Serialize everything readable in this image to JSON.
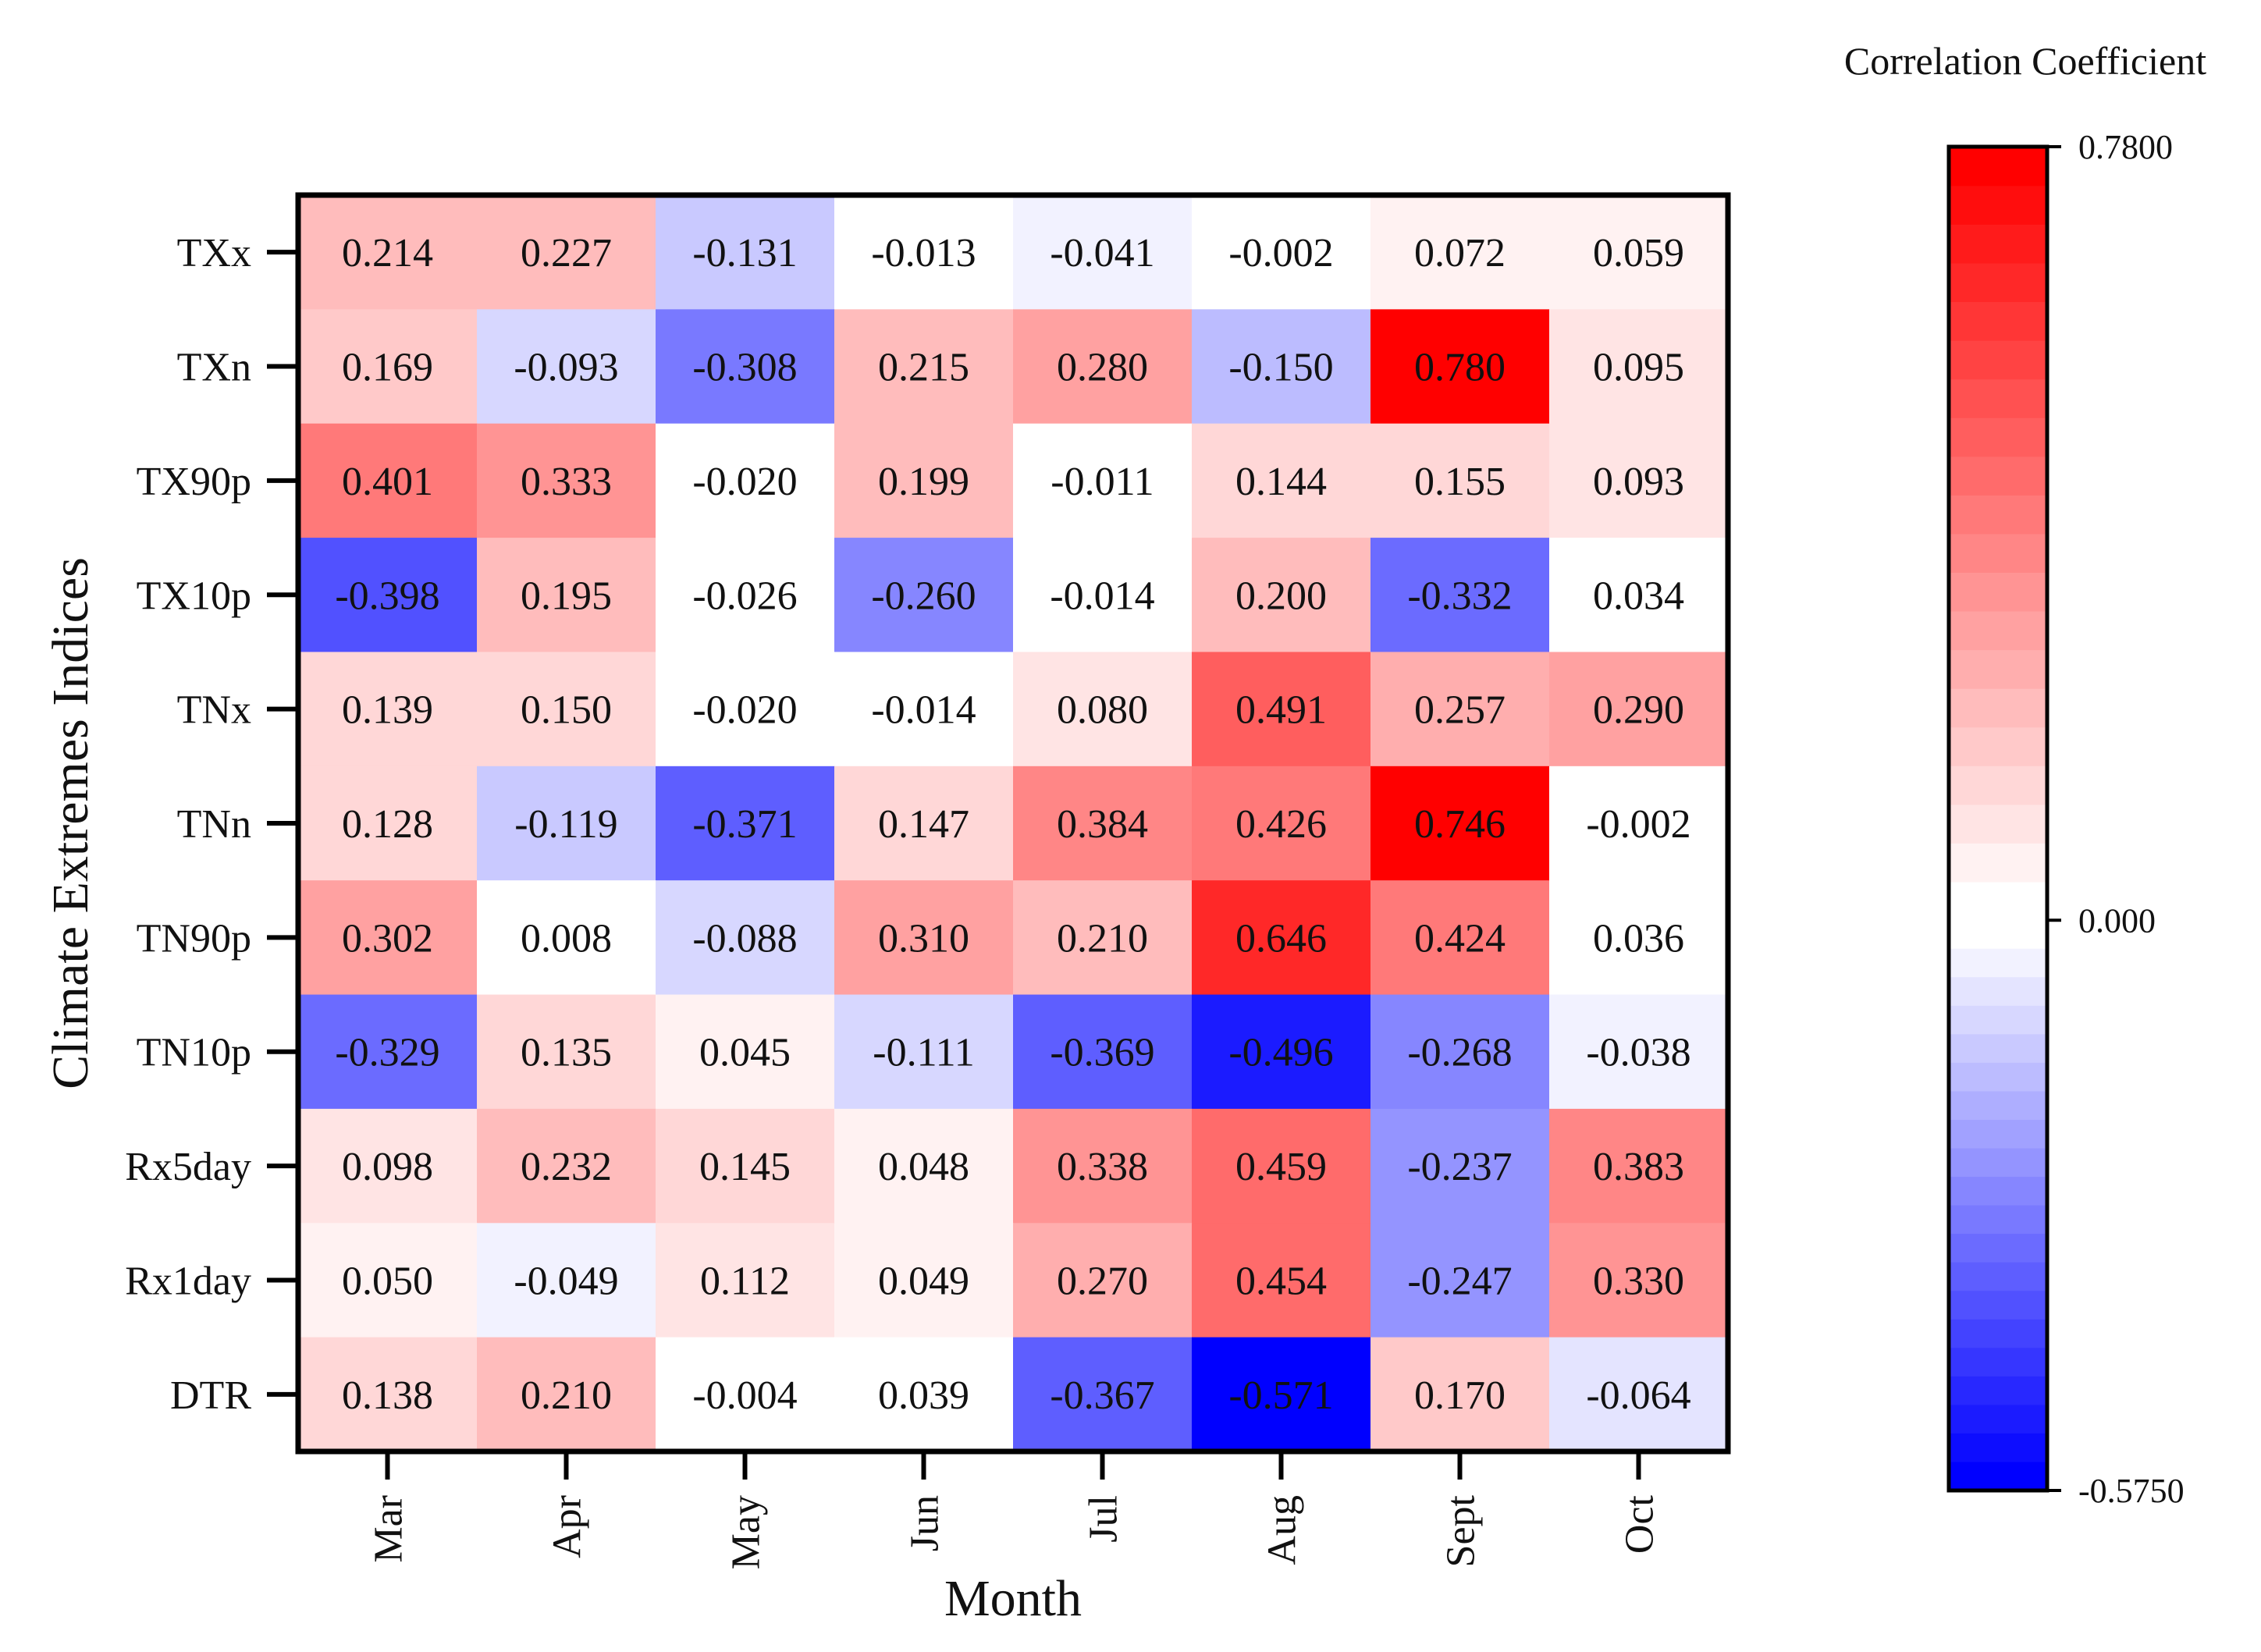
{
  "chart_data": {
    "type": "heatmap",
    "title": "",
    "xlabel": "Month",
    "ylabel": "Climate Extremes Indices",
    "columns": [
      "Mar",
      "Apr",
      "May",
      "Jun",
      "Jul",
      "Aug",
      "Sept",
      "Oct"
    ],
    "rows": [
      "TXx",
      "TXn",
      "TX90p",
      "TX10p",
      "TNx",
      "TNn",
      "TN90p",
      "TN10p",
      "Rx5day",
      "Rx1day",
      "DTR"
    ],
    "values": [
      [
        0.214,
        0.227,
        -0.131,
        -0.013,
        -0.041,
        -0.002,
        0.072,
        0.059
      ],
      [
        0.169,
        -0.093,
        -0.308,
        0.215,
        0.28,
        -0.15,
        0.78,
        0.095
      ],
      [
        0.401,
        0.333,
        -0.02,
        0.199,
        -0.011,
        0.144,
        0.155,
        0.093
      ],
      [
        -0.398,
        0.195,
        -0.026,
        -0.26,
        -0.014,
        0.2,
        -0.332,
        0.034
      ],
      [
        0.139,
        0.15,
        -0.02,
        -0.014,
        0.08,
        0.491,
        0.257,
        0.29
      ],
      [
        0.128,
        -0.119,
        -0.371,
        0.147,
        0.384,
        0.426,
        0.746,
        -0.002
      ],
      [
        0.302,
        0.008,
        -0.088,
        0.31,
        0.21,
        0.646,
        0.424,
        0.036
      ],
      [
        -0.329,
        0.135,
        0.045,
        -0.111,
        -0.369,
        -0.496,
        -0.268,
        -0.038
      ],
      [
        0.098,
        0.232,
        0.145,
        0.048,
        0.338,
        0.459,
        -0.237,
        0.383
      ],
      [
        0.05,
        -0.049,
        0.112,
        0.049,
        0.27,
        0.454,
        -0.247,
        0.33
      ],
      [
        0.138,
        0.21,
        -0.004,
        0.039,
        -0.367,
        -0.571,
        0.17,
        -0.064
      ]
    ],
    "value_labels": [
      [
        "0.214",
        "0.227",
        "-0.131",
        "-0.013",
        "-0.041",
        "-0.002",
        "0.072",
        "0.059"
      ],
      [
        "0.169",
        "-0.093",
        "-0.308",
        "0.215",
        "0.280",
        "-0.150",
        "0.780",
        "0.095"
      ],
      [
        "0.401",
        "0.333",
        "-0.020",
        "0.199",
        "-0.011",
        "0.144",
        "0.155",
        "0.093"
      ],
      [
        "-0.398",
        "0.195",
        "-0.026",
        "-0.260",
        "-0.014",
        "0.200",
        "-0.332",
        "0.034"
      ],
      [
        "0.139",
        "0.150",
        "-0.020",
        "-0.014",
        "0.080",
        "0.491",
        "0.257",
        "0.290"
      ],
      [
        "0.128",
        "-0.119",
        "-0.371",
        "0.147",
        "0.384",
        "0.426",
        "0.746",
        "-0.002"
      ],
      [
        "0.302",
        "0.008",
        "-0.088",
        "0.310",
        "0.210",
        "0.646",
        "0.424",
        "0.036"
      ],
      [
        "-0.329",
        "0.135",
        "0.045",
        "-0.111",
        "-0.369",
        "-0.496",
        "-0.268",
        "-0.038"
      ],
      [
        "0.098",
        "0.232",
        "0.145",
        "0.048",
        "0.338",
        "0.459",
        "-0.237",
        "0.383"
      ],
      [
        "0.050",
        "-0.049",
        "0.112",
        "0.049",
        "0.270",
        "0.454",
        "-0.247",
        "0.330"
      ],
      [
        "0.138",
        "0.210",
        "-0.004",
        "0.039",
        "-0.367",
        "-0.571",
        "0.170",
        "-0.064"
      ]
    ],
    "colorbar": {
      "title": "Correlation Coefficient",
      "min": -0.575,
      "mid": 0.0,
      "max": 0.78,
      "tick_labels": [
        "0.7800",
        "0.000",
        "-0.5750"
      ],
      "tick_values": [
        0.78,
        0.0,
        -0.575
      ],
      "levels": 40,
      "colors": {
        "low": "#0000ff",
        "mid": "#ffffff",
        "high": "#ff0000"
      },
      "placement": "right"
    }
  }
}
